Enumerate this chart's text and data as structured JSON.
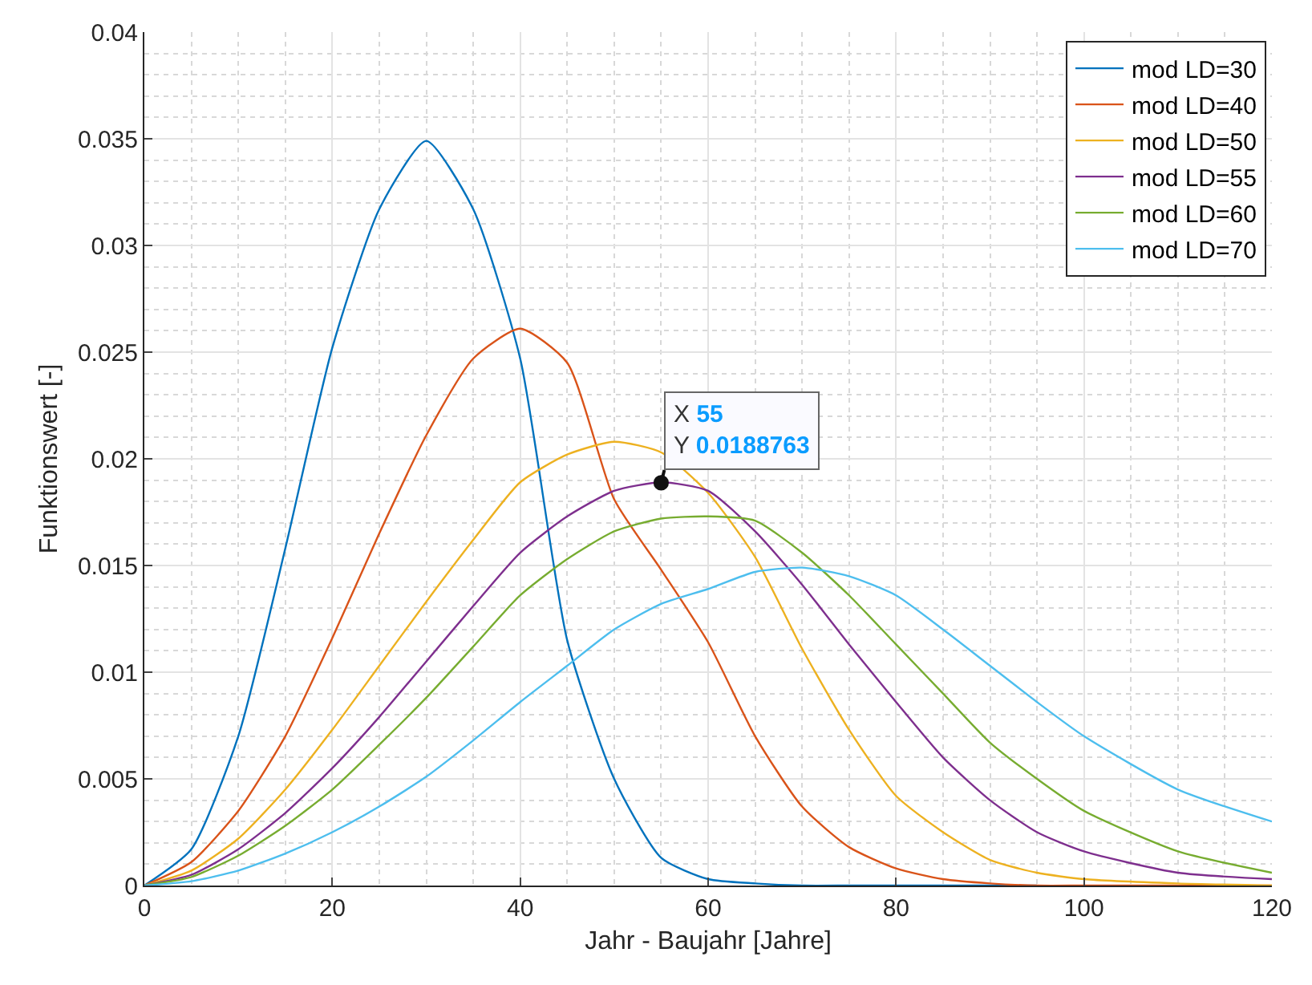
{
  "chart_data": {
    "type": "line",
    "xlabel": "Jahr - Baujahr [Jahre]",
    "ylabel": "Funktionswert [-]",
    "xlim": [
      0,
      120
    ],
    "xticks": [
      0,
      20,
      40,
      60,
      80,
      100,
      120
    ],
    "ylim": [
      0,
      0.04
    ],
    "yticks": [
      0,
      0.005,
      0.01,
      0.015,
      0.02,
      0.025,
      0.03,
      0.035,
      0.04
    ],
    "grid": true,
    "legend": "top right",
    "marker": "none",
    "line_style": "solid",
    "x": [
      0,
      5,
      10,
      15,
      20,
      25,
      30,
      35,
      40,
      45,
      50,
      55,
      60,
      65,
      70,
      75,
      80,
      85,
      90,
      95,
      100,
      110,
      120
    ],
    "series": [
      {
        "name": "mod LD=30",
        "color": "#0072bd",
        "values": [
          0,
          0.0017,
          0.007,
          0.0158,
          0.0252,
          0.0317,
          0.0349,
          0.0317,
          0.0247,
          0.0115,
          0.005,
          0.0013,
          0.0003,
          0.0001,
          0,
          0,
          0,
          0,
          0,
          0,
          null,
          null,
          null
        ]
      },
      {
        "name": "mod LD=40",
        "color": "#d95319",
        "values": [
          0,
          0.0011,
          0.0035,
          0.007,
          0.0116,
          0.0165,
          0.0211,
          0.0247,
          0.0261,
          0.0245,
          0.0181,
          0.0148,
          0.0114,
          0.007,
          0.0037,
          0.0018,
          0.0008,
          0.0003,
          0.0001,
          0,
          0,
          0,
          0
        ]
      },
      {
        "name": "mod LD=50",
        "color": "#edb120",
        "values": [
          0,
          0.0007,
          0.0022,
          0.0045,
          0.0073,
          0.0103,
          0.0133,
          0.0162,
          0.0189,
          0.0202,
          0.0208,
          0.0203,
          0.0184,
          0.0154,
          0.0111,
          0.0073,
          0.0042,
          0.0025,
          0.0012,
          0.0006,
          0.0003,
          0.0001,
          0
        ]
      },
      {
        "name": "mod LD=55",
        "color": "#7e2f8e",
        "values": [
          0,
          0.0005,
          0.0017,
          0.0034,
          0.0055,
          0.0079,
          0.0105,
          0.0131,
          0.0156,
          0.0173,
          0.0185,
          0.0189,
          0.0185,
          0.0166,
          0.0141,
          0.0113,
          0.0086,
          0.006,
          0.004,
          0.0025,
          0.0016,
          0.0006,
          0.0003
        ]
      },
      {
        "name": "mod LD=60",
        "color": "#77ac30",
        "values": [
          0,
          0.0004,
          0.0014,
          0.0028,
          0.0045,
          0.0066,
          0.0088,
          0.0112,
          0.0136,
          0.0153,
          0.0166,
          0.0172,
          0.0173,
          0.0171,
          0.0156,
          0.0136,
          0.0113,
          0.009,
          0.0067,
          0.005,
          0.0035,
          0.0016,
          0.0006
        ]
      },
      {
        "name": "mod LD=70",
        "color": "#4dbeee",
        "values": [
          0,
          0.0002,
          0.0007,
          0.0015,
          0.0025,
          0.0037,
          0.0051,
          0.0068,
          0.0086,
          0.0103,
          0.012,
          0.0132,
          0.0139,
          0.0147,
          0.0149,
          0.0145,
          0.0136,
          0.012,
          0.0103,
          0.0086,
          0.007,
          0.0045,
          0.003
        ]
      }
    ],
    "annotations": [
      {
        "text": "X 55\nY 0.0188763",
        "x": 55,
        "y": 0.0188763
      }
    ]
  }
}
